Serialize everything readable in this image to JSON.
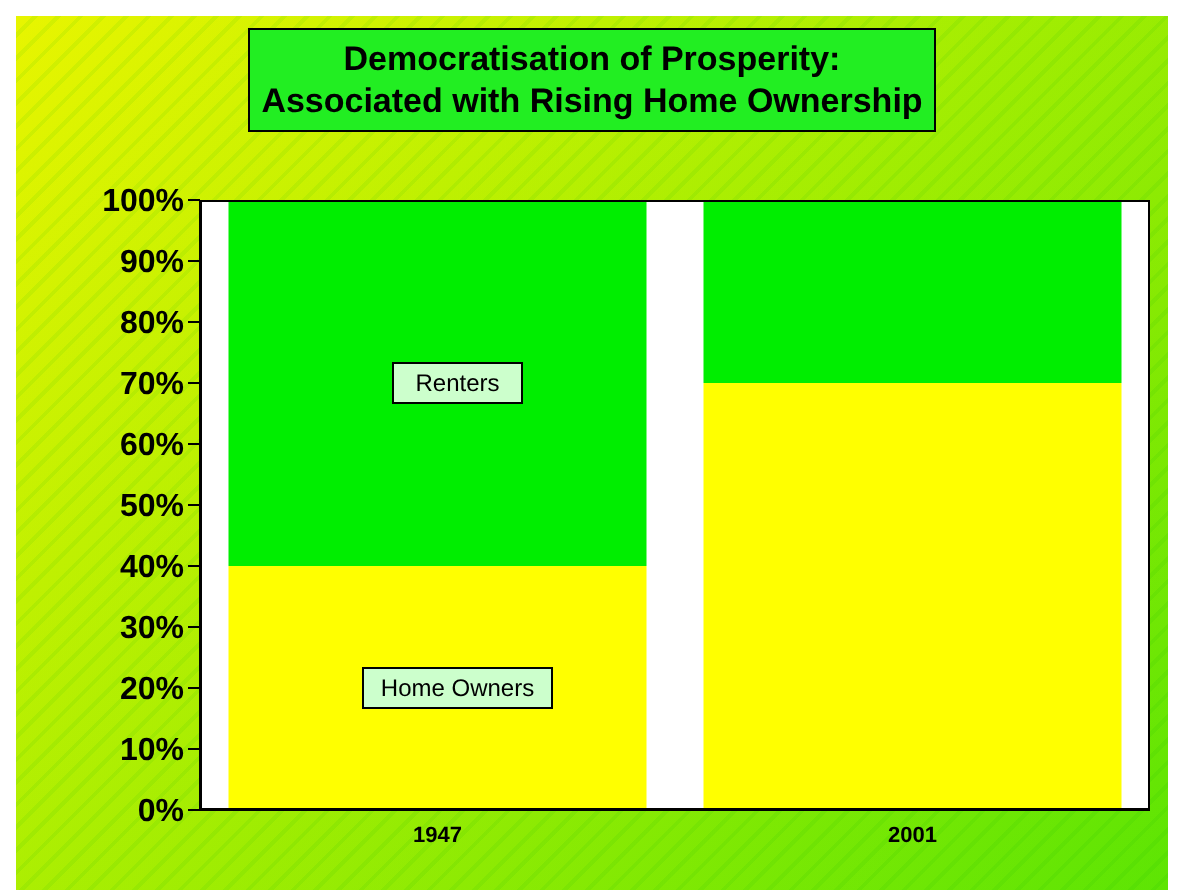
{
  "chart_data": {
    "type": "bar",
    "title": "Democratisation of Prosperity:\nAssociated with Rising Home Ownership",
    "categories": [
      "1947",
      "2001"
    ],
    "stacked": true,
    "series": [
      {
        "name": "Home Owners",
        "color": "#ffff00",
        "values": [
          40,
          70
        ]
      },
      {
        "name": "Renters",
        "color": "#00ee00",
        "values": [
          60,
          30
        ]
      }
    ],
    "ylim": [
      0,
      100
    ],
    "yticks": [
      {
        "value": 0,
        "label": "0%"
      },
      {
        "value": 10,
        "label": "10%"
      },
      {
        "value": 20,
        "label": "20%"
      },
      {
        "value": 30,
        "label": "30%"
      },
      {
        "value": 40,
        "label": "40%"
      },
      {
        "value": 50,
        "label": "50%"
      },
      {
        "value": 60,
        "label": "60%"
      },
      {
        "value": 70,
        "label": "70%"
      },
      {
        "value": 80,
        "label": "80%"
      },
      {
        "value": 90,
        "label": "90%"
      },
      {
        "value": 100,
        "label": "100%"
      }
    ],
    "grid": false,
    "legend": false
  }
}
